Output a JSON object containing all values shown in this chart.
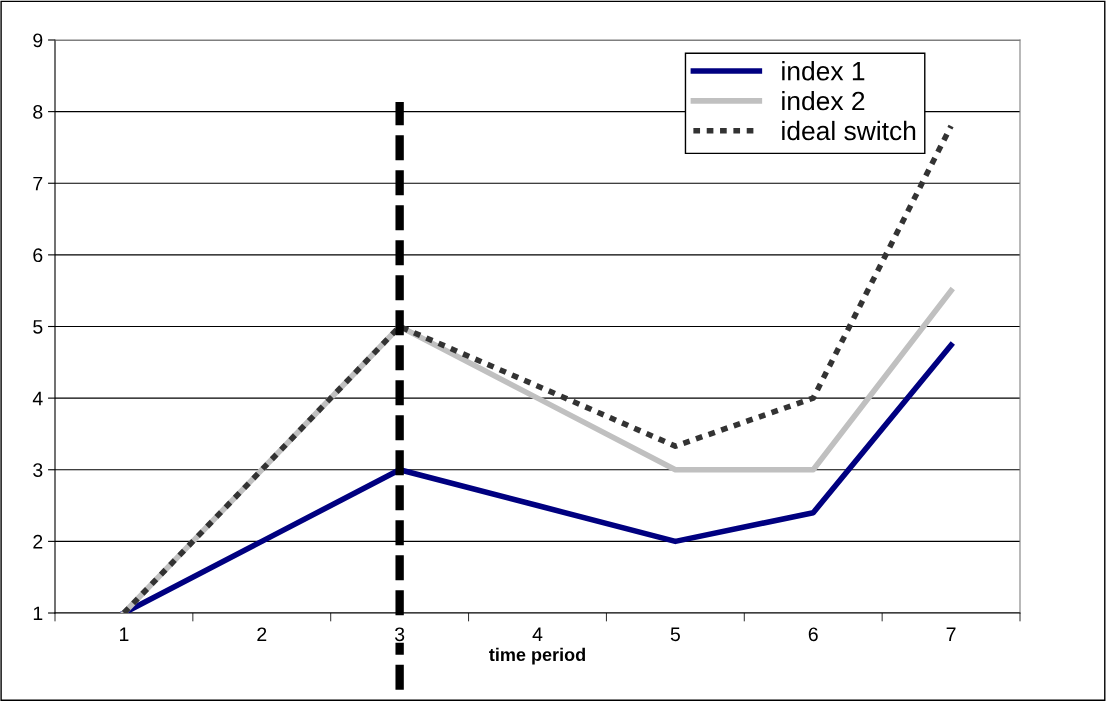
{
  "chart_data": {
    "type": "line",
    "xlabel": "time period",
    "categories": [
      "1",
      "2",
      "3",
      "4",
      "5",
      "6",
      "7"
    ],
    "series": [
      {
        "name": "index 1",
        "color": "#000080",
        "line_style": "solid",
        "values": [
          1,
          2,
          3,
          2.5,
          2,
          2.4,
          4.74
        ]
      },
      {
        "name": "index 2",
        "color": "#c0c0c0",
        "line_style": "solid",
        "values": [
          1,
          3,
          5,
          4,
          3,
          3,
          5.5
        ]
      },
      {
        "name": "ideal switch",
        "color": "#333333",
        "line_style": "dotted",
        "values": [
          1,
          3,
          5,
          4.17,
          3.33,
          4,
          7.8
        ]
      }
    ],
    "ylim": [
      1,
      9
    ],
    "yticks": [
      1,
      2,
      3,
      4,
      5,
      6,
      7,
      8,
      9
    ],
    "ref_lines": [
      {
        "axis": "x",
        "value": "3",
        "color": "#000000",
        "line_style": "dashed"
      }
    ],
    "grid": "y",
    "legend": "top right",
    "marker": "none"
  }
}
